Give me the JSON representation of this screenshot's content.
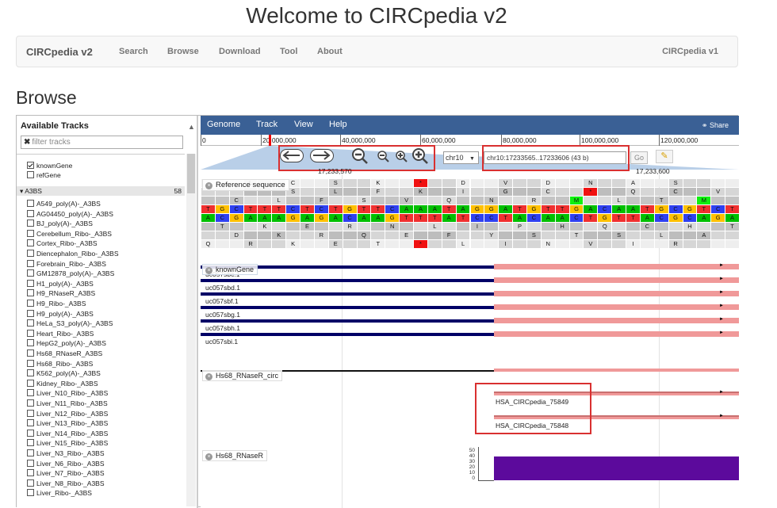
{
  "page": {
    "title": "Welcome to CIRCpedia v2",
    "heading": "Browse"
  },
  "navbar": {
    "brand": "CIRCpedia v2",
    "links": [
      "Search",
      "Browse",
      "Download",
      "Tool",
      "About"
    ],
    "right_link": "CIRCpedia v1"
  },
  "sidebar": {
    "title": "Available Tracks",
    "filter_placeholder": "filter tracks",
    "pinned": [
      {
        "label": "knownGene",
        "checked": true
      },
      {
        "label": "refGene",
        "checked": false
      }
    ],
    "category": {
      "label": "A3BS",
      "count": "58"
    },
    "items": [
      "A549_poly(A)-_A3BS",
      "AG04450_poly(A)-_A3BS",
      "BJ_poly(A)-_A3BS",
      "Cerebellum_Ribo-_A3BS",
      "Cortex_Ribo-_A3BS",
      "Diencephalon_Ribo-_A3BS",
      "Forebrain_Ribo-_A3BS",
      "GM12878_poly(A)-_A3BS",
      "H1_poly(A)-_A3BS",
      "H9_RNaseR_A3BS",
      "H9_Ribo-_A3BS",
      "H9_poly(A)-_A3BS",
      "HeLa_S3_poly(A)-_A3BS",
      "Heart_Ribo-_A3BS",
      "HepG2_poly(A)-_A3BS",
      "Hs68_RNaseR_A3BS",
      "Hs68_Ribo-_A3BS",
      "K562_poly(A)-_A3BS",
      "Kidney_Ribo-_A3BS",
      "Liver_N10_Ribo-_A3BS",
      "Liver_N11_Ribo-_A3BS",
      "Liver_N12_Ribo-_A3BS",
      "Liver_N13_Ribo-_A3BS",
      "Liver_N14_Ribo-_A3BS",
      "Liver_N15_Ribo-_A3BS",
      "Liver_N3_Ribo-_A3BS",
      "Liver_N6_Ribo-_A3BS",
      "Liver_N7_Ribo-_A3BS",
      "Liver_N8_Ribo-_A3BS",
      "Liver_Ribo-_A3BS"
    ]
  },
  "viewer": {
    "menu": [
      "Genome",
      "Track",
      "View",
      "Help"
    ],
    "share": "Share",
    "ruler_ticks": [
      "0",
      "20,000,000",
      "40,000,000",
      "60,000,000",
      "80,000,000",
      "100,000,000",
      "120,000,000"
    ],
    "chromosome": "chr10",
    "location": "chr10:17233565..17233606 (43 b)",
    "go_label": "Go",
    "view_start": "17,233,570",
    "view_end": "17,233,600",
    "tracks": {
      "reference": "Reference sequence",
      "known_gene": "knownGene",
      "circ": "Hs68_RNaseR_circ",
      "coverage": "Hs68_RNaseR"
    },
    "transcripts": [
      "uc057sbc.1",
      "uc057sbd.1",
      "uc057sbf.1",
      "uc057sbg.1",
      "uc057sbh.1",
      "uc057sbi.1"
    ],
    "circ_features": [
      "HSA_CIRCpedia_75849",
      "HSA_CIRCpedia_75848"
    ],
    "coverage_axis": [
      "50",
      "40",
      "30",
      "20",
      "10",
      "0"
    ],
    "seq_rows": [
      [
        "",
        "",
        "",
        "L",
        "",
        "",
        "C",
        "",
        "",
        "S",
        "",
        "",
        "K",
        "",
        "",
        "*",
        "",
        "",
        "D",
        "",
        "",
        "V",
        "",
        "",
        "D",
        "",
        "",
        "N",
        "",
        "",
        "A",
        "",
        "",
        "S",
        ""
      ],
      [
        "",
        "",
        "",
        "",
        "",
        "",
        "S",
        "",
        "",
        "L",
        "",
        "",
        "F",
        "",
        "",
        "K",
        "",
        "",
        "I",
        "",
        "",
        "G",
        "",
        "",
        "C",
        "",
        "",
        "*",
        "",
        "",
        "Q",
        "",
        "",
        "C",
        "",
        "",
        "V",
        "",
        "",
        "S",
        ""
      ],
      [
        "",
        "",
        "C",
        "",
        "",
        "L",
        "",
        "",
        "F",
        "",
        "",
        "S",
        "",
        "",
        "V",
        "",
        "",
        "Q",
        "",
        "",
        "N",
        "",
        "",
        "R",
        "",
        "",
        "M",
        "",
        "",
        "L",
        "",
        "",
        "T",
        "",
        "",
        "M",
        "",
        "",
        "R",
        "",
        "",
        "L"
      ],
      [
        "T",
        "G",
        "C",
        "T",
        "T",
        "T",
        "C",
        "T",
        "C",
        "T",
        "G",
        "T",
        "T",
        "C",
        "A",
        "A",
        "A",
        "T",
        "A",
        "G",
        "G",
        "A",
        "T",
        "G",
        "T",
        "T",
        "G",
        "A",
        "C",
        "A",
        "A",
        "T",
        "G",
        "C",
        "G",
        "T",
        "C",
        "T"
      ],
      [
        "A",
        "C",
        "G",
        "A",
        "A",
        "A",
        "G",
        "A",
        "G",
        "A",
        "C",
        "A",
        "A",
        "G",
        "T",
        "T",
        "T",
        "A",
        "T",
        "C",
        "C",
        "T",
        "A",
        "C",
        "A",
        "A",
        "C",
        "T",
        "G",
        "T",
        "T",
        "A",
        "C",
        "G",
        "C",
        "A",
        "G",
        "A"
      ],
      [
        "",
        "T",
        "",
        "",
        "K",
        "",
        "",
        "E",
        "",
        "",
        "R",
        "",
        "",
        "N",
        "",
        "",
        "L",
        "",
        "",
        "I",
        "",
        "",
        "P",
        "",
        "",
        "H",
        "",
        "",
        "Q",
        "",
        "",
        "C",
        "",
        "",
        "H",
        "",
        "",
        "T",
        "",
        "",
        "E"
      ],
      [
        "",
        "",
        "D",
        "",
        "",
        "K",
        "",
        "",
        "R",
        "",
        "",
        "Q",
        "",
        "",
        "E",
        "",
        "",
        "F",
        "",
        "",
        "Y",
        "",
        "",
        "S",
        "",
        "",
        "T",
        "",
        "",
        "S",
        "",
        "",
        "L",
        "",
        "",
        "A",
        "",
        "",
        "D",
        "",
        "",
        "R"
      ],
      [
        "Q",
        "",
        "",
        "R",
        "",
        "",
        "K",
        "",
        "",
        "E",
        "",
        "",
        "T",
        "",
        "",
        "*",
        "",
        "",
        "L",
        "",
        "",
        "I",
        "",
        "",
        "N",
        "",
        "",
        "V",
        "",
        "",
        "I",
        "",
        "",
        "R",
        ""
      ]
    ]
  },
  "colors": {
    "menubar": "#3a6095",
    "A": "#00c000",
    "C": "#2f40f0",
    "G": "#ffc000",
    "T": "#f03030",
    "stop": "#f01010",
    "met": "#10f010",
    "utr": "#000066",
    "cds": "#f09999",
    "coverage": "#5c0a9c",
    "highlight": "#d93030"
  }
}
